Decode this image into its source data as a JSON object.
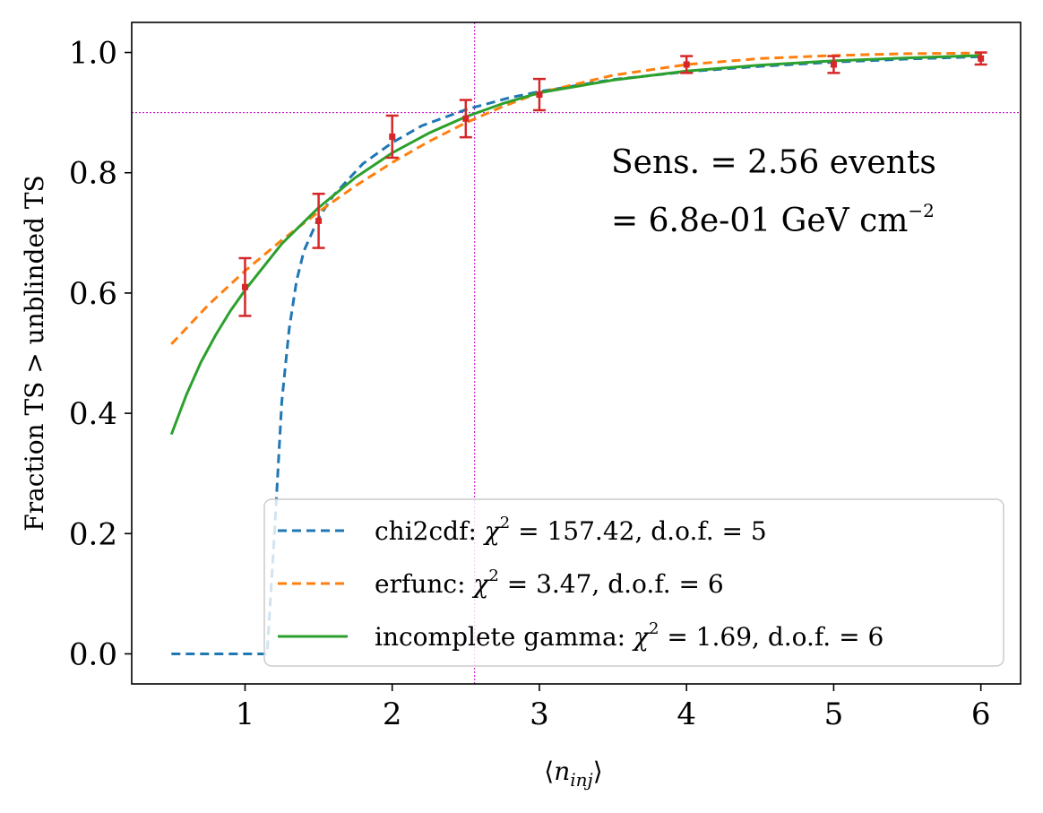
{
  "chart_data": {
    "type": "line",
    "xlabel": "⟨n_inj⟩",
    "ylabel": "Fraction TS > unblinded TS",
    "xlim": [
      0.23,
      6.27
    ],
    "ylim": [
      -0.05,
      1.05
    ],
    "x_ticks": [
      1,
      2,
      3,
      4,
      5,
      6
    ],
    "y_ticks": [
      0.0,
      0.2,
      0.4,
      0.6,
      0.8,
      1.0
    ],
    "x_tick_labels": [
      "1",
      "2",
      "3",
      "4",
      "5",
      "6"
    ],
    "y_tick_labels": [
      "0.0",
      "0.2",
      "0.4",
      "0.6",
      "0.8",
      "1.0"
    ],
    "grid": false,
    "legend_position": "lower-right",
    "reference_lines": {
      "x": 2.56,
      "y": 0.9,
      "color": "#bf00bf"
    },
    "annotations": [
      "Sens. = 2.56 events",
      "= 6.8e-01 GeV cm",
      "−2"
    ],
    "points": {
      "color": "#d62728",
      "x": [
        1,
        1.5,
        2,
        2.5,
        3,
        4,
        5,
        6
      ],
      "y": [
        0.61,
        0.72,
        0.86,
        0.89,
        0.93,
        0.98,
        0.98,
        0.99
      ],
      "err": [
        0.048,
        0.045,
        0.035,
        0.031,
        0.026,
        0.014,
        0.014,
        0.01
      ]
    },
    "series": [
      {
        "name": "chi2cdf",
        "legend": "chi2cdf: χ² = 157.42, d.o.f. = 5",
        "legend_prefix": "chi2cdf: ",
        "legend_suffix": " = 157.42, d.o.f. = 5",
        "color": "#1f77b4",
        "style": "dashed",
        "x": [
          0.5,
          0.8,
          1.1,
          1.15,
          1.2,
          1.25,
          1.3,
          1.35,
          1.4,
          1.5,
          1.6,
          1.8,
          2.0,
          2.2,
          2.5,
          2.8,
          3.0,
          3.5,
          4.0,
          4.5,
          5.0,
          5.5,
          6.0
        ],
        "y": [
          0.0,
          0.0,
          0.0,
          0.0,
          0.2,
          0.42,
          0.54,
          0.62,
          0.67,
          0.725,
          0.762,
          0.815,
          0.85,
          0.878,
          0.905,
          0.925,
          0.935,
          0.955,
          0.968,
          0.977,
          0.984,
          0.989,
          0.993
        ]
      },
      {
        "name": "erfunc",
        "legend": "erfunc: χ² = 3.47, d.o.f. = 6",
        "legend_prefix": "erfunc: ",
        "legend_suffix": " = 3.47, d.o.f. = 6",
        "color": "#ff7f0e",
        "style": "dashed",
        "x": [
          0.5,
          0.75,
          1.0,
          1.25,
          1.5,
          1.75,
          2.0,
          2.25,
          2.5,
          2.75,
          3.0,
          3.5,
          4.0,
          4.5,
          5.0,
          5.5,
          6.0
        ],
        "y": [
          0.515,
          0.58,
          0.637,
          0.688,
          0.735,
          0.778,
          0.817,
          0.852,
          0.883,
          0.91,
          0.933,
          0.962,
          0.98,
          0.99,
          0.995,
          0.998,
          0.999
        ]
      },
      {
        "name": "incomplete gamma",
        "legend": "incomplete gamma: χ² = 1.69, d.o.f. = 6",
        "legend_prefix": "incomplete gamma: ",
        "legend_suffix": " = 1.69, d.o.f. = 6",
        "color": "#2ca02c",
        "style": "solid",
        "x": [
          0.5,
          0.6,
          0.7,
          0.8,
          0.9,
          1.0,
          1.25,
          1.5,
          1.75,
          2.0,
          2.25,
          2.5,
          2.75,
          3.0,
          3.5,
          4.0,
          4.5,
          5.0,
          5.5,
          6.0
        ],
        "y": [
          0.365,
          0.43,
          0.485,
          0.53,
          0.57,
          0.605,
          0.682,
          0.742,
          0.792,
          0.833,
          0.866,
          0.893,
          0.915,
          0.933,
          0.954,
          0.969,
          0.979,
          0.986,
          0.991,
          0.995
        ]
      }
    ]
  }
}
